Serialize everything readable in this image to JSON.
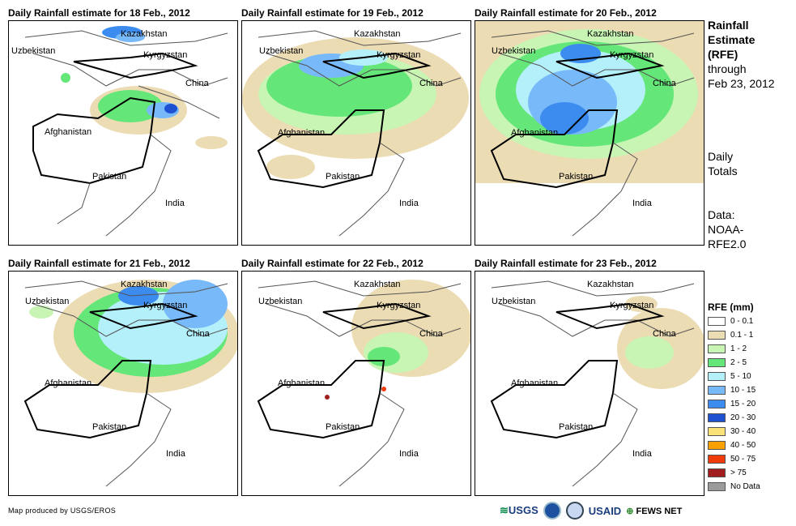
{
  "panels": [
    {
      "title": "Daily Rainfall estimate for 18 Feb., 2012"
    },
    {
      "title": "Daily Rainfall estimate for 19 Feb., 2012"
    },
    {
      "title": "Daily Rainfall estimate for 20 Feb., 2012"
    },
    {
      "title": "Daily Rainfall estimate for 21 Feb., 2012"
    },
    {
      "title": "Daily Rainfall estimate for 22 Feb., 2012"
    },
    {
      "title": "Daily Rainfall estimate for 23 Feb., 2012"
    }
  ],
  "countries": {
    "kazakhstan": "Kazakhstan",
    "uzbekistan": "Uzbekistan",
    "kyrgyzstan": "Kyrgyzstan",
    "china": "China",
    "afghanistan": "Afghanistan",
    "pakistan": "Pakistan",
    "india": "India"
  },
  "side": {
    "title_line1": "Rainfall",
    "title_line2": "Estimate",
    "title_line3": "(RFE)",
    "title_line4": "through",
    "title_line5": "Feb 23, 2012",
    "totals_line1": "Daily",
    "totals_line2": "Totals",
    "data_line1": "Data:",
    "data_line2": "NOAA-",
    "data_line3": "RFE2.0"
  },
  "legend": {
    "title": "RFE (mm)",
    "items": [
      {
        "label": "0 - 0.1",
        "color": "#ffffff"
      },
      {
        "label": "0.1 - 1",
        "color": "#ecdcb4"
      },
      {
        "label": "1 - 2",
        "color": "#c8f5b4"
      },
      {
        "label": "2 - 5",
        "color": "#64e678"
      },
      {
        "label": "5 - 10",
        "color": "#b4f0fa"
      },
      {
        "label": "10 - 15",
        "color": "#78b9fa"
      },
      {
        "label": "15 - 20",
        "color": "#3c8cf0"
      },
      {
        "label": "20 - 30",
        "color": "#1e50d2"
      },
      {
        "label": "30 - 40",
        "color": "#fae178"
      },
      {
        "label": "40 - 50",
        "color": "#faa000"
      },
      {
        "label": "50 - 75",
        "color": "#f03c0a"
      },
      {
        "label": "> 75",
        "color": "#a01e1e"
      },
      {
        "label": "No Data",
        "color": "#9b9b9b"
      }
    ]
  },
  "credit": "Map produced by USGS/EROS",
  "logos": {
    "usgs": "USGS",
    "usaid": "USAID",
    "fews": "FEWS NET"
  }
}
